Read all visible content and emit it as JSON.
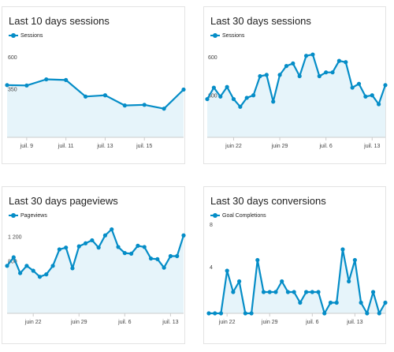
{
  "chart_data": [
    {
      "type": "area",
      "title": "Last 10 days sessions",
      "series": [
        {
          "name": "Sessions",
          "values": [
            410,
            407,
            455,
            450,
            320,
            330,
            250,
            255,
            225,
            375
          ]
        }
      ],
      "ylim": [
        0,
        700
      ],
      "y_ticks": [
        {
          "value": 350,
          "label": "350"
        },
        {
          "value": 600,
          "label": "600"
        }
      ],
      "x_ticks": [
        {
          "index": 1,
          "label": "juil. 9"
        },
        {
          "index": 3,
          "label": "juil. 11"
        },
        {
          "index": 5,
          "label": "juil. 13"
        },
        {
          "index": 7,
          "label": "juil. 15"
        }
      ],
      "grid": false,
      "legend": "top-left"
    },
    {
      "type": "area",
      "title": "Last 30 days sessions",
      "series": [
        {
          "name": "Sessions",
          "values": [
            300,
            390,
            320,
            395,
            300,
            240,
            310,
            330,
            480,
            490,
            280,
            490,
            560,
            580,
            480,
            640,
            650,
            480,
            510,
            510,
            600,
            590,
            390,
            420,
            320,
            330,
            260,
            410
          ]
        }
      ],
      "ylim": [
        0,
        700
      ],
      "y_ticks": [
        {
          "value": 300,
          "label": "300"
        },
        {
          "value": 600,
          "label": "600"
        }
      ],
      "x_ticks": [
        {
          "index": 4,
          "label": "juin 22"
        },
        {
          "index": 11,
          "label": "juin 29"
        },
        {
          "index": 18,
          "label": "juil. 6"
        },
        {
          "index": 25,
          "label": "juil. 13"
        }
      ],
      "grid": false,
      "legend": "top-left"
    },
    {
      "type": "area",
      "title": "Last 30 days pageviews",
      "series": [
        {
          "name": "Pageviews",
          "values": [
            780,
            920,
            660,
            780,
            700,
            600,
            640,
            780,
            1050,
            1080,
            740,
            1100,
            1150,
            1200,
            1080,
            1280,
            1380,
            1090,
            990,
            980,
            1110,
            1090,
            900,
            890,
            750,
            940,
            940,
            1280
          ]
        }
      ],
      "ylim": [
        0,
        1400
      ],
      "y_ticks": [
        {
          "value": 800,
          "label": "800"
        },
        {
          "value": 1200,
          "label": "1 200"
        }
      ],
      "x_ticks": [
        {
          "index": 4,
          "label": "juin 22"
        },
        {
          "index": 11,
          "label": "juin 29"
        },
        {
          "index": 18,
          "label": "juil. 6"
        },
        {
          "index": 25,
          "label": "juil. 13"
        }
      ],
      "grid": false,
      "legend": "top-left"
    },
    {
      "type": "area",
      "title": "Last 30 days conversions",
      "series": [
        {
          "name": "Goal Completions",
          "values": [
            0,
            0,
            0,
            4,
            2,
            3,
            0,
            0,
            5,
            2,
            2,
            2,
            3,
            2,
            2,
            1,
            2,
            2,
            2,
            0,
            1,
            1,
            6,
            3,
            5,
            1,
            0,
            2,
            0,
            1
          ]
        }
      ],
      "ylim": [
        0,
        8
      ],
      "y_ticks": [
        {
          "value": 4,
          "label": "4"
        },
        {
          "value": 8,
          "label": "8"
        }
      ],
      "x_ticks": [
        {
          "index": 3,
          "label": "juin 22"
        },
        {
          "index": 10,
          "label": "juin 29"
        },
        {
          "index": 17,
          "label": "juil. 6"
        },
        {
          "index": 24,
          "label": "juil. 13"
        }
      ],
      "grid": false,
      "legend": "top-left"
    }
  ],
  "colors": {
    "line": "#058dc7",
    "fill": "#e6f4fa",
    "axis": "#cccccc"
  }
}
